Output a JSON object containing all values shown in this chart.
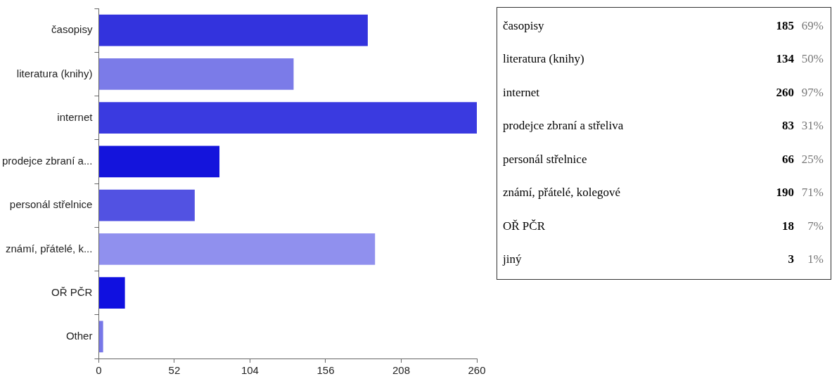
{
  "chart_data": [
    {
      "type": "bar",
      "orientation": "horizontal",
      "categories": [
        "časopisy",
        "literatura (knihy)",
        "internet",
        "prodejce zbraní a...",
        "personál střelnice",
        "známí, přátelé, k...",
        "OŘ PČR",
        "Other"
      ],
      "values": [
        185,
        134,
        260,
        83,
        66,
        190,
        18,
        3
      ],
      "colors": [
        "#3333dd",
        "#7b7be8",
        "#3a3ae0",
        "#1414dc",
        "#5252e2",
        "#9090ee",
        "#1010e0",
        "#7777e8"
      ],
      "xlim": [
        0,
        260
      ],
      "xticks": [
        0,
        52,
        104,
        156,
        208,
        260
      ],
      "grid": false,
      "legend": false
    },
    {
      "type": "other",
      "categories": [
        "časopisy",
        "literatura (knihy)",
        "internet",
        "prodejce zbraní a střeliva",
        "personál střelnice",
        "známí, přátelé, kolegové",
        "OŘ PČR",
        "jiný"
      ],
      "series": [
        {
          "values": [
            185,
            134,
            260,
            83,
            66,
            190,
            18,
            3
          ]
        },
        {
          "values": [
            69,
            50,
            97,
            31,
            25,
            71,
            7,
            1
          ],
          "value_labels": [
            "69%",
            "50%",
            "97%",
            "31%",
            "25%",
            "71%",
            "7%",
            "1%"
          ]
        }
      ],
      "data_labels": true
    }
  ]
}
